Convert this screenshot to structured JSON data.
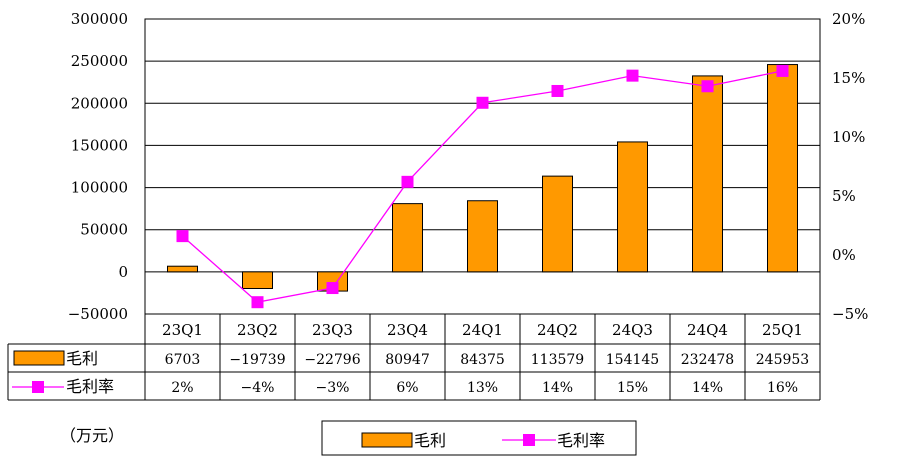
{
  "chart_data": {
    "type": "bar",
    "categories": [
      "23Q1",
      "23Q2",
      "23Q3",
      "23Q4",
      "24Q1",
      "24Q2",
      "24Q3",
      "24Q4",
      "25Q1"
    ],
    "series": [
      {
        "name": "毛利",
        "type": "bar",
        "axis": "left",
        "values": [
          6703,
          -19739,
          -22796,
          80947,
          84375,
          113579,
          154145,
          232478,
          245953
        ],
        "labels": [
          "6703",
          "-19739",
          "-22796",
          "80947",
          "84375",
          "113579",
          "154145",
          "232478",
          "245953"
        ],
        "color": "#FF9900"
      },
      {
        "name": "毛利率",
        "type": "line",
        "axis": "right",
        "values": [
          1.6,
          -4.0,
          -2.8,
          6.2,
          12.9,
          13.9,
          15.2,
          14.3,
          15.6
        ],
        "labels": [
          "2%",
          "-4%",
          "-3%",
          "6%",
          "13%",
          "14%",
          "15%",
          "14%",
          "16%"
        ],
        "color": "#FF00FF"
      }
    ],
    "ylim": [
      -50000,
      300000
    ],
    "yticks": [
      "-50000",
      "0",
      "50000",
      "100000",
      "150000",
      "200000",
      "250000",
      "300000"
    ],
    "y2lim": [
      -5,
      20
    ],
    "y2ticks": [
      "-5%",
      "0%",
      "5%",
      "10%",
      "15%",
      "20%"
    ],
    "unit_note": "（万元）",
    "legend": {
      "placement": "bottom",
      "items": [
        "毛利",
        "毛利率"
      ]
    },
    "grid": true
  }
}
